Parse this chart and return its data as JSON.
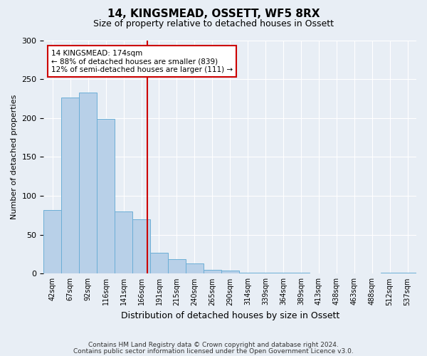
{
  "title": "14, KINGSMEAD, OSSETT, WF5 8RX",
  "subtitle": "Size of property relative to detached houses in Ossett",
  "xlabel": "Distribution of detached houses by size in Ossett",
  "ylabel": "Number of detached properties",
  "bar_color": "#b8d0e8",
  "bar_edge_color": "#6baed6",
  "bg_color": "#e8eef5",
  "categories": [
    "42sqm",
    "67sqm",
    "92sqm",
    "116sqm",
    "141sqm",
    "166sqm",
    "191sqm",
    "215sqm",
    "240sqm",
    "265sqm",
    "290sqm",
    "314sqm",
    "339sqm",
    "364sqm",
    "389sqm",
    "413sqm",
    "438sqm",
    "463sqm",
    "488sqm",
    "512sqm",
    "537sqm"
  ],
  "values": [
    82,
    226,
    233,
    199,
    80,
    70,
    27,
    19,
    13,
    5,
    4,
    1,
    1,
    1,
    1,
    0,
    0,
    0,
    0,
    1,
    1
  ],
  "marker_bin_index": 5.32,
  "annotation_title": "14 KINGSMEAD: 174sqm",
  "annotation_line1": "← 88% of detached houses are smaller (839)",
  "annotation_line2": "12% of semi-detached houses are larger (111) →",
  "annotation_box_color": "#ffffff",
  "annotation_border_color": "#cc0000",
  "vline_color": "#cc0000",
  "ylim": [
    0,
    300
  ],
  "yticks": [
    0,
    50,
    100,
    150,
    200,
    250,
    300
  ],
  "footnote1": "Contains HM Land Registry data © Crown copyright and database right 2024.",
  "footnote2": "Contains public sector information licensed under the Open Government Licence v3.0."
}
